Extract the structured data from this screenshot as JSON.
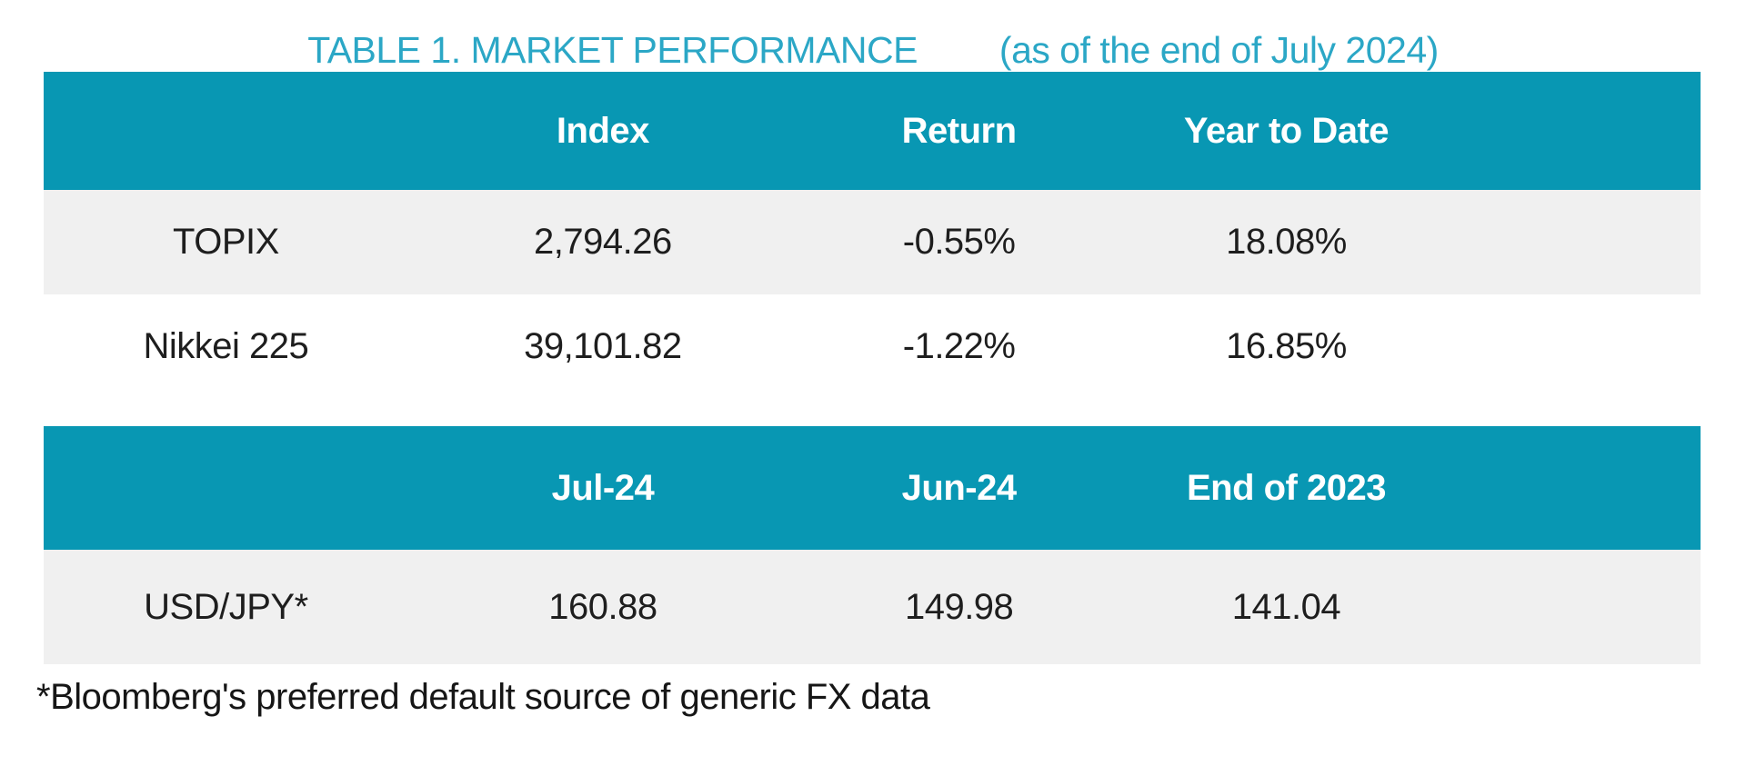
{
  "title": {
    "main": "TABLE 1. MARKET PERFORMANCE",
    "suffix": "(as of the end of July 2024)"
  },
  "tables": [
    {
      "headers": [
        "",
        "Index",
        "Return",
        "Year to Date"
      ],
      "rows": [
        {
          "label": "TOPIX",
          "values": [
            "2,794.26",
            "-0.55%",
            "18.08%"
          ]
        },
        {
          "label": "Nikkei 225",
          "values": [
            "39,101.82",
            "-1.22%",
            "16.85%"
          ]
        }
      ]
    },
    {
      "headers": [
        "",
        "Jul-24",
        "Jun-24",
        "End of 2023"
      ],
      "rows": [
        {
          "label": "USD/JPY*",
          "values": [
            "160.88",
            "149.98",
            "141.04"
          ]
        }
      ]
    }
  ],
  "footnote": "*Bloomberg's preferred default source of generic FX data",
  "colors": {
    "header_background": "#0897B3",
    "header_text": "#FFFFFF",
    "title_text": "#2BA7C6",
    "row_alt_background": "#F0F0F0",
    "body_text": "#1E1E1E"
  },
  "chart_data": [
    {
      "type": "table",
      "title": "TABLE 1. MARKET PERFORMANCE (as of the end of July 2024)",
      "columns": [
        "",
        "Index",
        "Return",
        "Year to Date"
      ],
      "rows": [
        [
          "TOPIX",
          "2,794.26",
          "-0.55%",
          "18.08%"
        ],
        [
          "Nikkei 225",
          "39,101.82",
          "-1.22%",
          "16.85%"
        ]
      ]
    },
    {
      "type": "table",
      "title": "FX rates",
      "columns": [
        "",
        "Jul-24",
        "Jun-24",
        "End of 2023"
      ],
      "rows": [
        [
          "USD/JPY*",
          "160.88",
          "149.98",
          "141.04"
        ]
      ],
      "footnote": "*Bloomberg's preferred default source of generic FX data"
    }
  ]
}
